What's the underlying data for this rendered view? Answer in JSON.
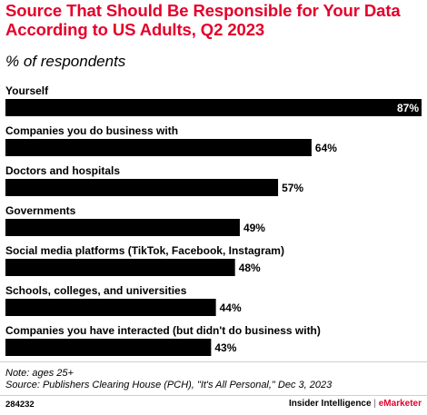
{
  "chart_data": {
    "type": "bar",
    "orientation": "horizontal",
    "title": "Source That Should Be Responsible for Your Data According to US Adults, Q2 2023",
    "subtitle": "% of respondents",
    "categories": [
      "Yourself",
      "Companies you do business with",
      "Doctors and hospitals",
      "Governments",
      "Social media platforms (TikTok, Facebook, Instagram)",
      "Schools, colleges, and universities",
      "Companies you have interacted (but didn't do business with)"
    ],
    "values": [
      87,
      64,
      57,
      49,
      48,
      44,
      43
    ],
    "value_labels": [
      "87%",
      "64%",
      "57%",
      "49%",
      "48%",
      "44%",
      "43%"
    ],
    "bar_color": "#000000",
    "xlim": [
      0,
      87
    ],
    "grid": false,
    "legend": "none"
  },
  "footer": {
    "note": "Note: ages 25+",
    "source": "Source: Publishers Clearing House (PCH), \"It's All Personal,\" Dec 3, 2023",
    "chart_id": "284232",
    "brand_primary": "Insider Intelligence",
    "brand_separator": "|",
    "brand_secondary": "eMarketer"
  },
  "colors": {
    "title": "#e4002b",
    "accent": "#e4002b",
    "divider": "#cfcfcf"
  }
}
